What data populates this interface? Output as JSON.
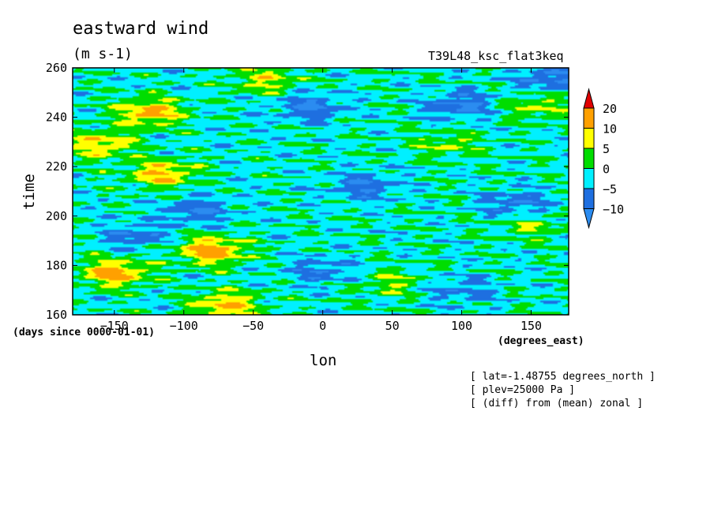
{
  "chart_data": {
    "type": "heatmap",
    "title": "eastward wind",
    "units": "(m s-1)",
    "run_label": "T39L48_ksc_flat3keq",
    "xlabel": "lon",
    "xunits": "(degrees_east)",
    "ylabel": "time",
    "yunits": "(days since 0000-01-01)",
    "xlim": [
      -180,
      177
    ],
    "ylim": [
      160,
      260
    ],
    "x_ticks": [
      -150,
      -100,
      -50,
      0,
      50,
      100,
      150
    ],
    "y_ticks": [
      160,
      180,
      200,
      220,
      240,
      260
    ],
    "colorbar": {
      "levels": [
        -10,
        -5,
        0,
        5,
        10,
        20
      ],
      "colors": [
        "#2b8cf0",
        "#1e6fe0",
        "#00f0ff",
        "#00dd00",
        "#ffff00",
        "#ffa000",
        "#e00000"
      ],
      "extend": "both"
    },
    "annotations": [
      "[ lat=-1.48755 degrees_north ]",
      "[ plev=25000 Pa ]",
      "[ (diff) from (mean) zonal ]"
    ],
    "features": [
      {
        "lon": -125,
        "time": 242,
        "value": 13
      },
      {
        "lon": -160,
        "time": 229,
        "value": 11
      },
      {
        "lon": -115,
        "time": 217,
        "value": 12
      },
      {
        "lon": -80,
        "time": 186,
        "value": 15
      },
      {
        "lon": -150,
        "time": 177,
        "value": 14
      },
      {
        "lon": -70,
        "time": 164,
        "value": 12
      },
      {
        "lon": -40,
        "time": 255,
        "value": 8
      },
      {
        "lon": 155,
        "time": 244,
        "value": 7
      },
      {
        "lon": 150,
        "time": 196,
        "value": 6
      },
      {
        "lon": 90,
        "time": 229,
        "value": 6
      },
      {
        "lon": 50,
        "time": 173,
        "value": 6
      },
      {
        "lon": -10,
        "time": 244,
        "value": -9
      },
      {
        "lon": 100,
        "time": 245,
        "value": -9
      },
      {
        "lon": -90,
        "time": 202,
        "value": -8
      },
      {
        "lon": 30,
        "time": 212,
        "value": -8
      },
      {
        "lon": 0,
        "time": 178,
        "value": -7
      },
      {
        "lon": 140,
        "time": 205,
        "value": -8
      },
      {
        "lon": 165,
        "time": 256,
        "value": -9
      },
      {
        "lon": -135,
        "time": 192,
        "value": -7
      },
      {
        "lon": 100,
        "time": 170,
        "value": -6
      }
    ]
  }
}
